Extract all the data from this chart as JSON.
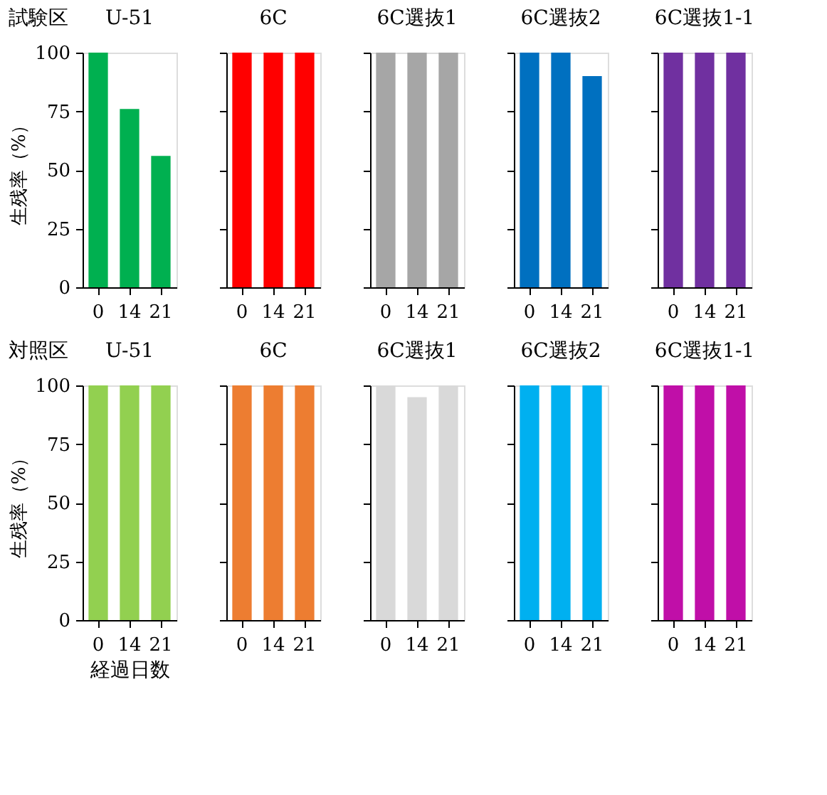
{
  "chart_data": [
    {
      "type": "bar",
      "title": "U-51",
      "annotations": [
        "試験区"
      ],
      "ylabel": "生残率（%）",
      "categories": [
        "0",
        "14",
        "21"
      ],
      "values": [
        100,
        76,
        56
      ],
      "color": "#00b050",
      "ylim": [
        0,
        100
      ],
      "yticks": [
        0,
        25,
        50,
        75,
        100
      ]
    },
    {
      "type": "bar",
      "title": "6C",
      "categories": [
        "0",
        "14",
        "21"
      ],
      "values": [
        100,
        100,
        100
      ],
      "color": "#ff0000",
      "ylim": [
        0,
        100
      ],
      "yticks": [
        0,
        25,
        50,
        75,
        100
      ],
      "tick_labels": "x"
    },
    {
      "type": "bar",
      "title": "6C選抜1",
      "categories": [
        "0",
        "14",
        "21"
      ],
      "values": [
        100,
        100,
        100
      ],
      "color": "#a6a6a6",
      "ylim": [
        0,
        100
      ],
      "yticks": [
        0,
        25,
        50,
        75,
        100
      ],
      "tick_labels": "x"
    },
    {
      "type": "bar",
      "title": "6C選抜2",
      "categories": [
        "0",
        "14",
        "21"
      ],
      "values": [
        100,
        100,
        90
      ],
      "color": "#0070c0",
      "ylim": [
        0,
        100
      ],
      "yticks": [
        0,
        25,
        50,
        75,
        100
      ],
      "tick_labels": "x"
    },
    {
      "type": "bar",
      "title": "6C選抜1-1",
      "categories": [
        "0",
        "14",
        "21"
      ],
      "values": [
        100,
        100,
        100
      ],
      "color": "#7030a0",
      "ylim": [
        0,
        100
      ],
      "yticks": [
        0,
        25,
        50,
        75,
        100
      ],
      "tick_labels": "x"
    },
    {
      "type": "bar",
      "title": "U-51",
      "annotations": [
        "対照区"
      ],
      "ylabel": "生残率（%）",
      "xlabel": "経過日数",
      "categories": [
        "0",
        "14",
        "21"
      ],
      "values": [
        100,
        100,
        100
      ],
      "color": "#92d050",
      "ylim": [
        0,
        100
      ],
      "yticks": [
        0,
        25,
        50,
        75,
        100
      ]
    },
    {
      "type": "bar",
      "title": "6C",
      "categories": [
        "0",
        "14",
        "21"
      ],
      "values": [
        100,
        100,
        100
      ],
      "color": "#ed7d31",
      "ylim": [
        0,
        100
      ],
      "yticks": [
        0,
        25,
        50,
        75,
        100
      ],
      "tick_labels": "x"
    },
    {
      "type": "bar",
      "title": "6C選抜1",
      "categories": [
        "0",
        "14",
        "21"
      ],
      "values": [
        100,
        95,
        100
      ],
      "color": "#d9d9d9",
      "ylim": [
        0,
        100
      ],
      "yticks": [
        0,
        25,
        50,
        75,
        100
      ],
      "tick_labels": "x"
    },
    {
      "type": "bar",
      "title": "6C選抜2",
      "categories": [
        "0",
        "14",
        "21"
      ],
      "values": [
        100,
        100,
        100
      ],
      "color": "#00b0f0",
      "ylim": [
        0,
        100
      ],
      "yticks": [
        0,
        25,
        50,
        75,
        100
      ],
      "tick_labels": "x"
    },
    {
      "type": "bar",
      "title": "6C選抜1-1",
      "categories": [
        "0",
        "14",
        "21"
      ],
      "values": [
        100,
        100,
        100
      ],
      "color": "#c00fa8",
      "ylim": [
        0,
        100
      ],
      "yticks": [
        0,
        25,
        50,
        75,
        100
      ],
      "tick_labels": "x"
    }
  ]
}
